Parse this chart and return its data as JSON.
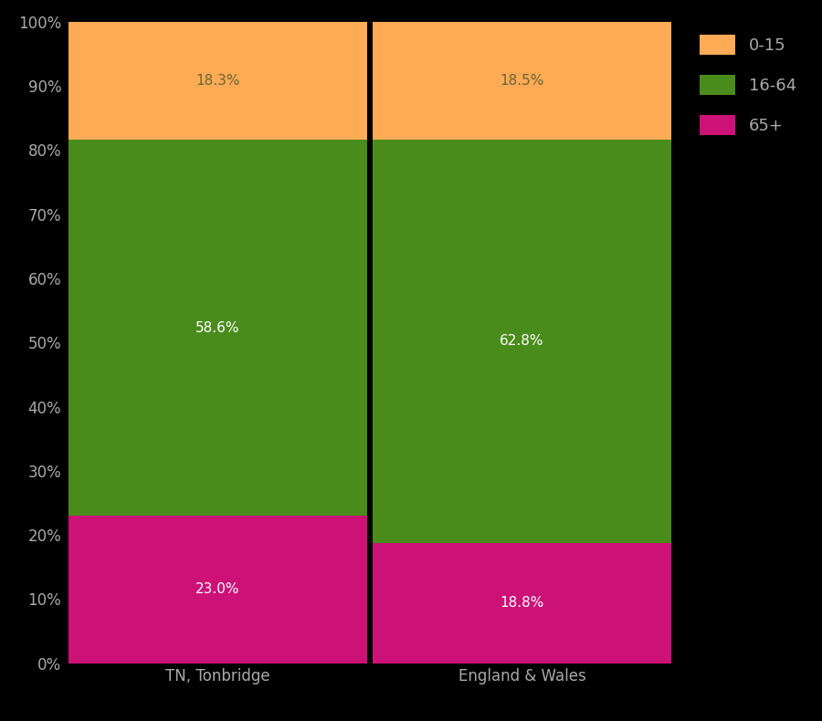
{
  "categories": [
    "TN, Tonbridge",
    "England & Wales"
  ],
  "segments": {
    "65+": [
      23.0,
      18.8
    ],
    "16-64": [
      58.6,
      62.8
    ],
    "0-15": [
      18.3,
      18.5
    ]
  },
  "colors": {
    "0-15": "#FFAA55",
    "16-64": "#4A8C1C",
    "65+": "#CC1177"
  },
  "segment_order": [
    "65+",
    "16-64",
    "0-15"
  ],
  "legend_order": [
    "0-15",
    "16-64",
    "65+"
  ],
  "background_color": "#000000",
  "text_color": "#AAAAAA",
  "label_color_orange": "#666633",
  "label_color_green": "#FFFFFF",
  "label_color_pink": "#FFFFFF",
  "yticks": [
    0,
    10,
    20,
    30,
    40,
    50,
    60,
    70,
    80,
    90,
    100
  ],
  "bar_width": 0.98,
  "figsize": [
    9.0,
    7.9
  ],
  "dpi": 100,
  "label_fontsize": 11,
  "tick_fontsize": 12,
  "legend_fontsize": 13
}
